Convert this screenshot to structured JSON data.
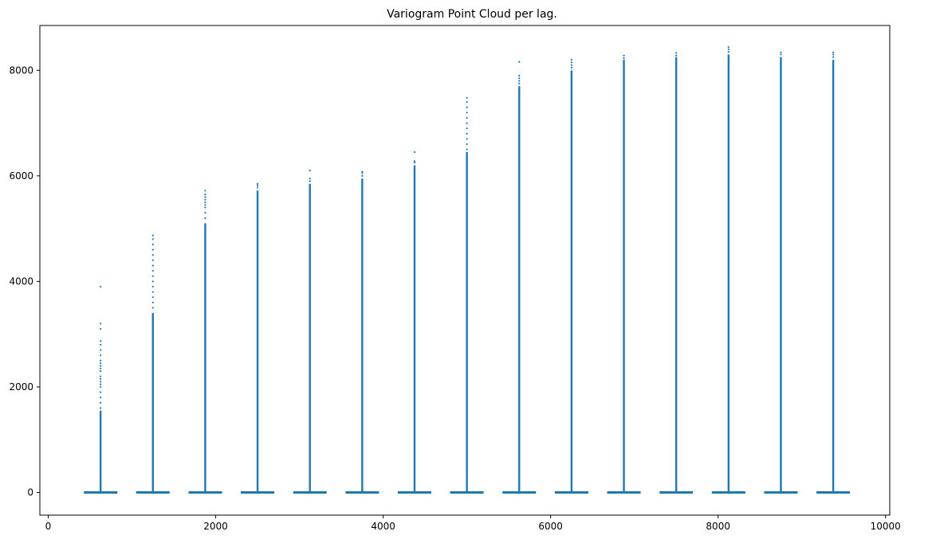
{
  "chart_data": {
    "type": "scatter",
    "title": "Variogram Point Cloud per lag.",
    "xlabel": "",
    "ylabel": "",
    "xlim": [
      -100,
      10050
    ],
    "ylim": [
      -430,
      8850
    ],
    "xticks": [
      0,
      2000,
      4000,
      6000,
      8000,
      10000
    ],
    "yticks": [
      0,
      2000,
      4000,
      6000,
      8000
    ],
    "grid": false,
    "color": "#1f77b4",
    "bins": [
      {
        "center": 625,
        "max": 3900,
        "dense_top": 1550,
        "outliers": [
          1600,
          1700,
          1800,
          1900,
          2000,
          2050,
          2100,
          2150,
          2200,
          2300,
          2350,
          2400,
          2450,
          2500,
          2600,
          2700,
          2800,
          2870,
          3100,
          3200,
          3900
        ]
      },
      {
        "center": 1250,
        "max": 4870,
        "dense_top": 3400,
        "outliers": [
          3500,
          3600,
          3700,
          3800,
          3900,
          4000,
          4100,
          4200,
          4300,
          4400,
          4500,
          4600,
          4700,
          4800,
          4870
        ]
      },
      {
        "center": 1875,
        "max": 5720,
        "dense_top": 5100,
        "outliers": [
          5200,
          5300,
          5400,
          5450,
          5500,
          5550,
          5600,
          5650,
          5720
        ]
      },
      {
        "center": 2500,
        "max": 5850,
        "dense_top": 5720,
        "outliers": [
          5780,
          5820,
          5850
        ]
      },
      {
        "center": 3125,
        "max": 6100,
        "dense_top": 5850,
        "outliers": [
          5900,
          5950,
          6100
        ]
      },
      {
        "center": 3750,
        "max": 6080,
        "dense_top": 5950,
        "outliers": [
          6000,
          6050,
          6080
        ]
      },
      {
        "center": 4375,
        "max": 6450,
        "dense_top": 6200,
        "outliers": [
          6250,
          6280,
          6450
        ]
      },
      {
        "center": 5000,
        "max": 7480,
        "dense_top": 6450,
        "outliers": [
          6500,
          6600,
          6700,
          6800,
          6900,
          7000,
          7100,
          7200,
          7300,
          7400,
          7480
        ]
      },
      {
        "center": 5625,
        "max": 8160,
        "dense_top": 7700,
        "outliers": [
          7750,
          7800,
          7850,
          7900,
          8160
        ]
      },
      {
        "center": 6250,
        "max": 8200,
        "dense_top": 8000,
        "outliers": [
          8050,
          8100,
          8150,
          8200
        ]
      },
      {
        "center": 6875,
        "max": 8280,
        "dense_top": 8200,
        "outliers": [
          8230,
          8280
        ]
      },
      {
        "center": 7500,
        "max": 8330,
        "dense_top": 8250,
        "outliers": [
          8280,
          8330
        ]
      },
      {
        "center": 8125,
        "max": 8440,
        "dense_top": 8300,
        "outliers": [
          8350,
          8400,
          8440
        ]
      },
      {
        "center": 8750,
        "max": 8340,
        "dense_top": 8250,
        "outliers": [
          8300,
          8340
        ]
      },
      {
        "center": 9375,
        "max": 8340,
        "dense_top": 8200,
        "outliers": [
          8250,
          8300,
          8340
        ]
      }
    ]
  }
}
